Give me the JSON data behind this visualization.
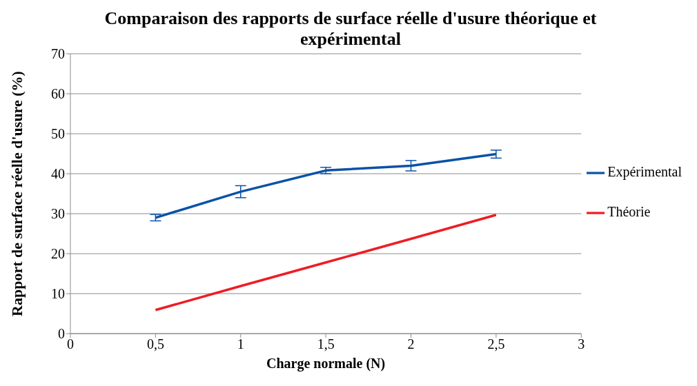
{
  "chart_data": {
    "type": "line",
    "title": "Comparaison des rapports de surface réelle d'usure théorique et expérimental",
    "xlabel": "Charge normale (N)",
    "ylabel": "Rapport de surface réelle d'usure (%)",
    "x": [
      0.5,
      1,
      1.5,
      2,
      2.5
    ],
    "series": [
      {
        "name": "Expérimental",
        "color": "#0a52a6",
        "values": [
          29,
          35.5,
          40.8,
          42,
          44.9
        ],
        "errors": [
          0.8,
          1.5,
          0.8,
          1.3,
          1
        ]
      },
      {
        "name": "Théorie",
        "color": "#ee1c25",
        "values": [
          5.9,
          11.9,
          17.8,
          23.7,
          29.7
        ]
      }
    ],
    "xlim": [
      0,
      3
    ],
    "xticks": [
      0,
      {
        "value": 0.5,
        "label": "0,5"
      },
      1,
      {
        "value": 1.5,
        "label": "1,5"
      },
      2,
      {
        "value": 2.5,
        "label": "2,5"
      },
      3
    ],
    "ylim": [
      0,
      70
    ],
    "yticks": [
      0,
      10,
      20,
      30,
      40,
      50,
      60,
      70
    ],
    "grid": "y",
    "legend": "right",
    "marker": "none",
    "line_style": "solid"
  }
}
